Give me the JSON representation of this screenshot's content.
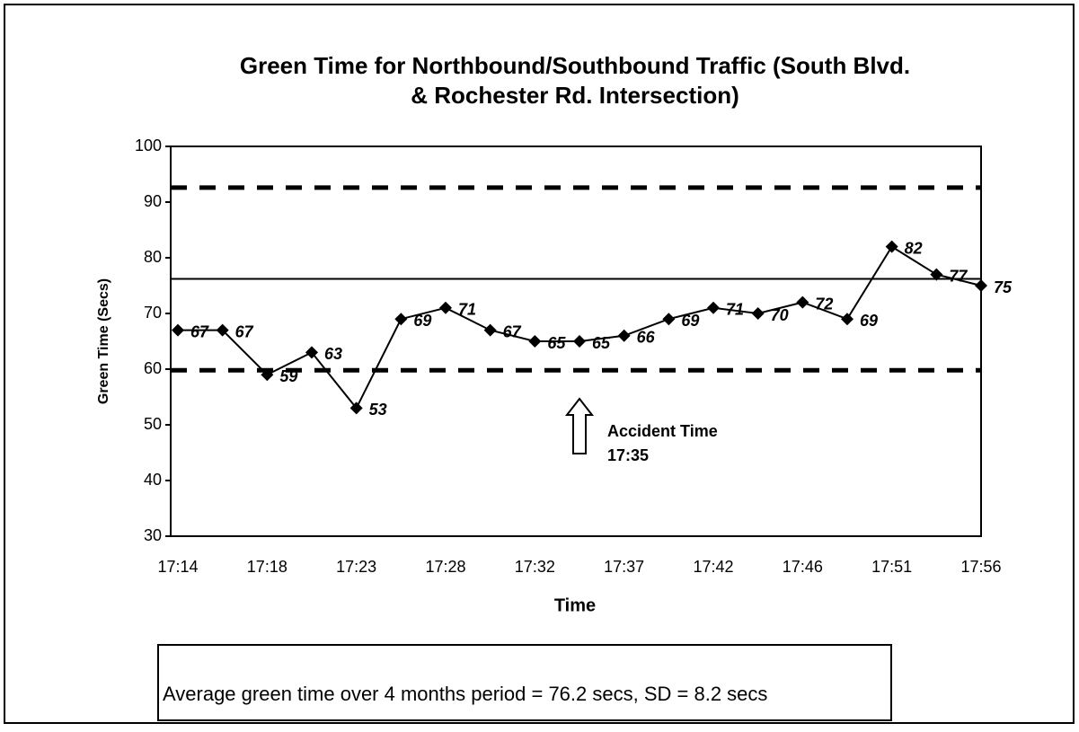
{
  "chart_data": {
    "type": "line",
    "title": "Green Time for Northbound/Southbound Traffic (South Blvd. & Rochester Rd. Intersection)",
    "x_label": "Time",
    "y_label": "Green Time (Secs)",
    "categories": [
      "17:14",
      null,
      "17:18",
      null,
      "17:23",
      null,
      "17:28",
      null,
      "17:32",
      null,
      "17:37",
      null,
      "17:42",
      null,
      "17:46",
      null,
      "17:51",
      null,
      "17:56"
    ],
    "values": [
      67,
      67,
      59,
      63,
      53,
      69,
      71,
      67,
      65,
      65,
      66,
      69,
      71,
      70,
      72,
      69,
      82,
      77,
      75
    ],
    "color": "#000000",
    "ylim": [
      30,
      100
    ],
    "yticks": [
      30,
      40,
      50,
      60,
      70,
      80,
      90,
      100
    ],
    "grid": false,
    "reference_lines": [
      {
        "value": 92.6,
        "style": "dashed"
      },
      {
        "value": 76.2,
        "style": "solid"
      },
      {
        "value": 59.8,
        "style": "dashed"
      }
    ],
    "annotation": [
      "Accident Time",
      "17:35"
    ],
    "caption": "Average green time over 4 months period = 76.2 secs, SD = 8.2 secs"
  }
}
